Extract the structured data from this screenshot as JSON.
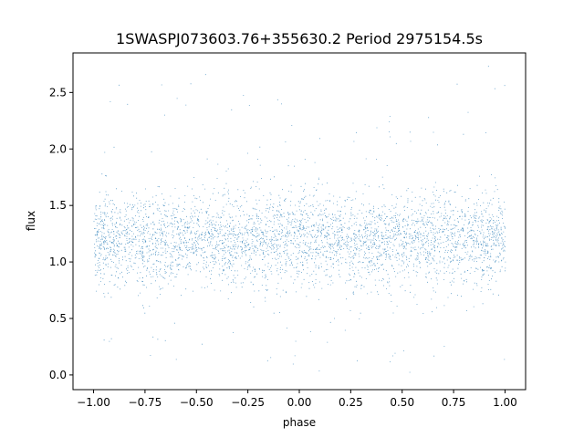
{
  "chart_data": {
    "type": "scatter",
    "title": "1SWASPJ073603.76+355630.2 Period 2975154.5s",
    "xlabel": "phase",
    "ylabel": "flux",
    "xlim": [
      -1.1,
      1.1
    ],
    "ylim": [
      -0.13,
      2.85
    ],
    "x_ticks": [
      -1.0,
      -0.75,
      -0.5,
      -0.25,
      0.0,
      0.25,
      0.5,
      0.75,
      1.0
    ],
    "x_tick_labels": [
      "−1.00",
      "−0.75",
      "−0.50",
      "−0.25",
      "0.00",
      "0.25",
      "0.50",
      "0.75",
      "1.00"
    ],
    "y_ticks": [
      0.0,
      0.5,
      1.0,
      1.5,
      2.0,
      2.5
    ],
    "y_tick_labels": [
      "0.0",
      "0.5",
      "1.0",
      "1.5",
      "2.0",
      "2.5"
    ],
    "grid": false,
    "legend": "none",
    "series": [
      {
        "color": "#1f77b4",
        "x_range": [
          -1.0,
          1.0
        ],
        "core_flux_range": [
          0.75,
          1.7
        ],
        "center_flux": 1.2,
        "sparse_outlier_flux_range": [
          0.0,
          2.75
        ]
      }
    ]
  }
}
